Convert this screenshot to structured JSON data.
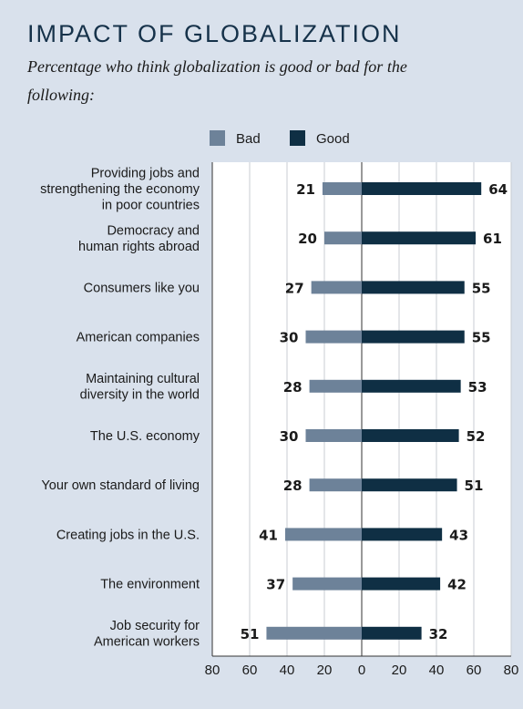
{
  "header": {
    "title": "IMPACT OF GLOBALIZATION",
    "subtitle_line1": "Percentage who think globalization is good or bad for the",
    "subtitle_line2": "following:"
  },
  "colors": {
    "background": "#d9e1ec",
    "plot_background": "#ffffff",
    "bad": "#6d8299",
    "good": "#0f2f44",
    "grid": "#c8cdd3",
    "axis": "#333333"
  },
  "chart_data": {
    "type": "bar",
    "orientation": "horizontal-diverging",
    "title": "IMPACT OF GLOBALIZATION",
    "subtitle": "Percentage who think globalization is good or bad for the following:",
    "legend": {
      "placement": "top",
      "entries": [
        "Bad",
        "Good"
      ]
    },
    "categories": [
      [
        "Providing jobs and",
        "strengthening the economy",
        "in poor countries"
      ],
      [
        "Democracy and",
        "human rights abroad"
      ],
      [
        "Consumers like you"
      ],
      [
        "American companies"
      ],
      [
        "Maintaining cultural",
        "diversity in the world"
      ],
      [
        "The U.S. economy"
      ],
      [
        "Your own standard of living"
      ],
      [
        "Creating jobs in the U.S."
      ],
      [
        "The environment"
      ],
      [
        "Job security for",
        "American workers"
      ]
    ],
    "series": [
      {
        "name": "Bad",
        "values": [
          21,
          20,
          27,
          30,
          28,
          30,
          28,
          41,
          37,
          51
        ]
      },
      {
        "name": "Good",
        "values": [
          64,
          61,
          55,
          55,
          53,
          52,
          51,
          43,
          42,
          32
        ]
      }
    ],
    "xlim": [
      -80,
      80
    ],
    "x_tick_labels": [
      "80",
      "60",
      "40",
      "20",
      "0",
      "20",
      "40",
      "60",
      "80"
    ],
    "grid": true
  }
}
